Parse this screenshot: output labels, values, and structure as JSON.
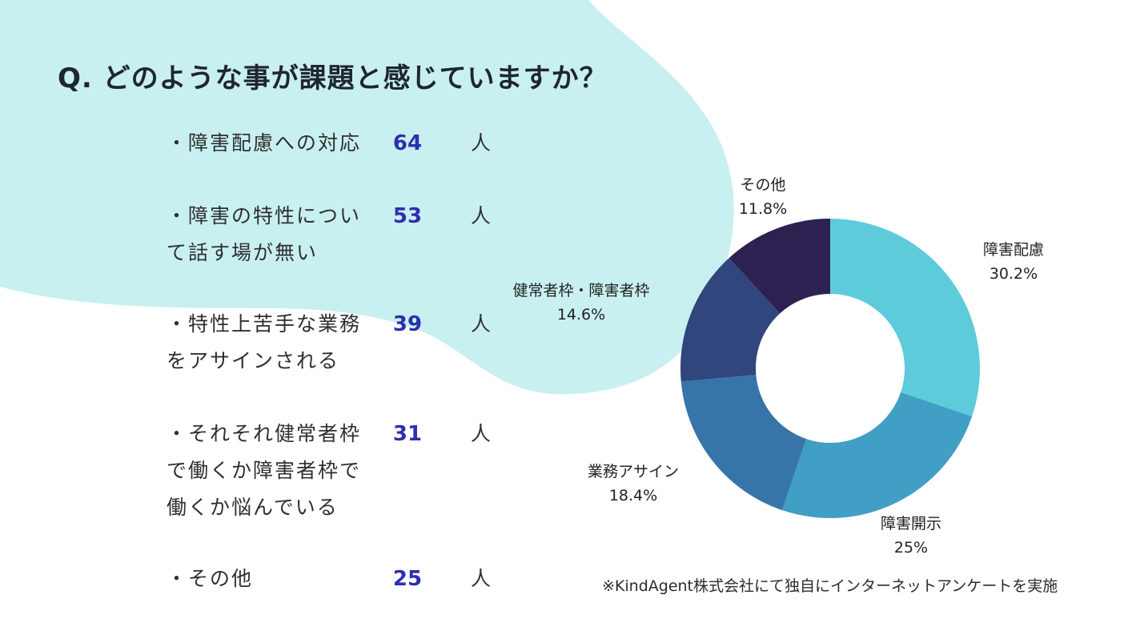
{
  "title": "Q. どのような事が課題と感じていますか？",
  "items": [
    {
      "label": "・障害配慮への対応",
      "count": "64",
      "unit": "人"
    },
    {
      "label": "・障害の特性について話す場が無い",
      "count": "53",
      "unit": "人"
    },
    {
      "label": "・特性上苦手な業務をアサインされる",
      "count": "39",
      "unit": "人"
    },
    {
      "label": "・それそれ健常者枠で働くか障害者枠で働くか悩んでいる",
      "count": "31",
      "unit": "人"
    },
    {
      "label": "・その他",
      "count": "25",
      "unit": "人"
    }
  ],
  "footnote": "※KindAgent株式会社にて独自にインターネットアンケートを実施",
  "colors": {
    "background_blob": "#c9f0f0",
    "count_text": "#2d2fb0"
  },
  "chart_data": {
    "type": "pie",
    "donut": true,
    "title": "",
    "slices": [
      {
        "name": "障害配慮",
        "value": 30.2,
        "label": "30.2%",
        "color": "#5ecbdb"
      },
      {
        "name": "障害開示",
        "value": 25,
        "label": "25%",
        "color": "#419fc5"
      },
      {
        "name": "業務アサイン",
        "value": 18.4,
        "label": "18.4%",
        "color": "#3774a8"
      },
      {
        "name": "健常者枠・障害者枠",
        "value": 14.6,
        "label": "14.6%",
        "color": "#30467c"
      },
      {
        "name": "その他",
        "value": 11.8,
        "label": "11.8%",
        "color": "#2c2150"
      }
    ]
  }
}
